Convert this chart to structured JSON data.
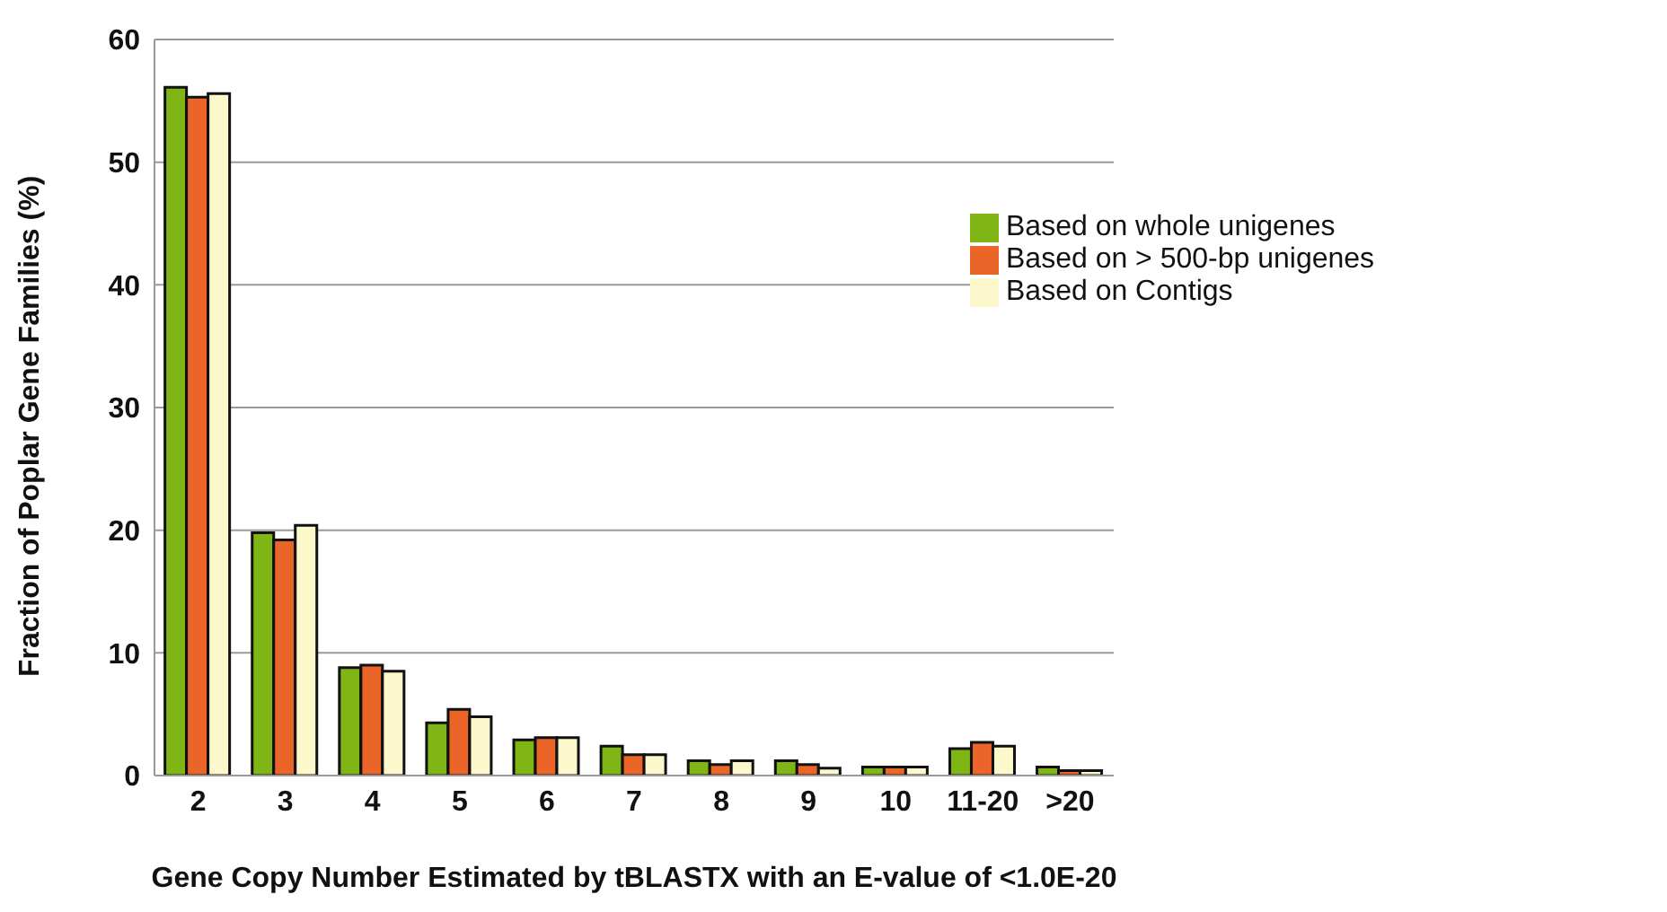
{
  "chart_data": {
    "type": "bar",
    "xlabel": "Gene Copy Number Estimated by tBLASTX with an E-value of <1.0E-20",
    "ylabel": "Fraction of Poplar Gene Families (%)",
    "categories": [
      "2",
      "3",
      "4",
      "5",
      "6",
      "7",
      "8",
      "9",
      "10",
      "11-20",
      ">20"
    ],
    "series": [
      {
        "name": "Based on whole unigenes",
        "color": "#7fb514",
        "values": [
          56.1,
          19.8,
          8.8,
          4.3,
          2.9,
          2.4,
          1.2,
          1.2,
          0.7,
          2.2,
          0.7
        ]
      },
      {
        "name": "Based on > 500-bp unigenes",
        "color": "#eb6428",
        "values": [
          55.3,
          19.2,
          9.0,
          5.4,
          3.1,
          1.7,
          0.9,
          0.9,
          0.7,
          2.7,
          0.4
        ]
      },
      {
        "name": "Based on Contigs",
        "color": "#fdf7cc",
        "values": [
          55.6,
          20.4,
          8.5,
          4.8,
          3.1,
          1.7,
          1.2,
          0.6,
          0.7,
          2.4,
          0.4
        ]
      }
    ],
    "ylim": [
      0,
      60
    ],
    "yticks": [
      0,
      10,
      20,
      30,
      40,
      50,
      60
    ],
    "grid": "y",
    "legend": "top right"
  }
}
